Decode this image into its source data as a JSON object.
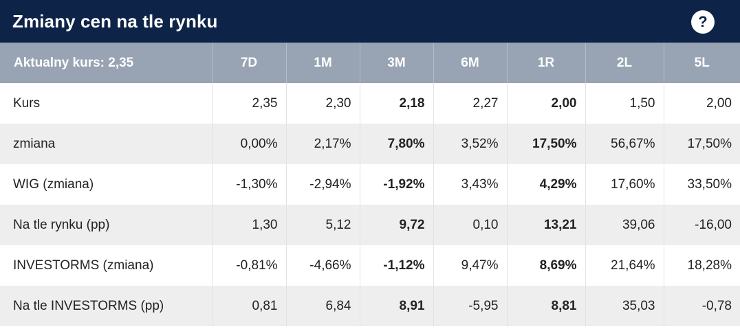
{
  "widget": {
    "title": "Zmiany cen na tle rynku",
    "help_glyph": "?"
  },
  "colors": {
    "title_bg": "#0d2348",
    "header_bg": "#98a3b3",
    "positive": "#2e9e3e",
    "negative": "#d42a2a",
    "neutral": "#222222",
    "stripe": "#eeeeee"
  },
  "table": {
    "header_label": "Aktualny kurs: 2,35",
    "periods": [
      "7D",
      "1M",
      "3M",
      "6M",
      "1R",
      "2L",
      "5L"
    ],
    "rows": [
      {
        "label": "Kurs",
        "cells": [
          {
            "v": "2,35",
            "c": "neu"
          },
          {
            "v": "2,30",
            "c": "neu"
          },
          {
            "v": "2,18",
            "c": "neu",
            "b": true
          },
          {
            "v": "2,27",
            "c": "neu"
          },
          {
            "v": "2,00",
            "c": "neu",
            "b": true
          },
          {
            "v": "1,50",
            "c": "neu"
          },
          {
            "v": "2,00",
            "c": "neu"
          }
        ]
      },
      {
        "label": "zmiana",
        "cells": [
          {
            "v": "0,00%",
            "c": "neu"
          },
          {
            "v": "2,17%",
            "c": "pos"
          },
          {
            "v": "7,80%",
            "c": "pos",
            "b": true
          },
          {
            "v": "3,52%",
            "c": "pos"
          },
          {
            "v": "17,50%",
            "c": "pos",
            "b": true
          },
          {
            "v": "56,67%",
            "c": "pos"
          },
          {
            "v": "17,50%",
            "c": "pos"
          }
        ]
      },
      {
        "label": "WIG (zmiana)",
        "cells": [
          {
            "v": "-1,30%",
            "c": "neg"
          },
          {
            "v": "-2,94%",
            "c": "neg"
          },
          {
            "v": "-1,92%",
            "c": "neg",
            "b": true
          },
          {
            "v": "3,43%",
            "c": "pos"
          },
          {
            "v": "4,29%",
            "c": "pos",
            "b": true
          },
          {
            "v": "17,60%",
            "c": "pos"
          },
          {
            "v": "33,50%",
            "c": "pos"
          }
        ]
      },
      {
        "label": "Na tle rynku (pp)",
        "cells": [
          {
            "v": "1,30",
            "c": "pos"
          },
          {
            "v": "5,12",
            "c": "pos"
          },
          {
            "v": "9,72",
            "c": "pos",
            "b": true
          },
          {
            "v": "0,10",
            "c": "pos"
          },
          {
            "v": "13,21",
            "c": "pos",
            "b": true
          },
          {
            "v": "39,06",
            "c": "pos"
          },
          {
            "v": "-16,00",
            "c": "neg"
          }
        ]
      },
      {
        "label": "INVESTORMS (zmiana)",
        "cells": [
          {
            "v": "-0,81%",
            "c": "neg"
          },
          {
            "v": "-4,66%",
            "c": "neg"
          },
          {
            "v": "-1,12%",
            "c": "neg",
            "b": true
          },
          {
            "v": "9,47%",
            "c": "pos"
          },
          {
            "v": "8,69%",
            "c": "pos",
            "b": true
          },
          {
            "v": "21,64%",
            "c": "pos"
          },
          {
            "v": "18,28%",
            "c": "pos"
          }
        ]
      },
      {
        "label": "Na tle INVESTORMS (pp)",
        "cells": [
          {
            "v": "0,81",
            "c": "pos"
          },
          {
            "v": "6,84",
            "c": "pos"
          },
          {
            "v": "8,91",
            "c": "pos",
            "b": true
          },
          {
            "v": "-5,95",
            "c": "neg"
          },
          {
            "v": "8,81",
            "c": "pos",
            "b": true
          },
          {
            "v": "35,03",
            "c": "pos"
          },
          {
            "v": "-0,78",
            "c": "neg"
          }
        ]
      }
    ]
  }
}
